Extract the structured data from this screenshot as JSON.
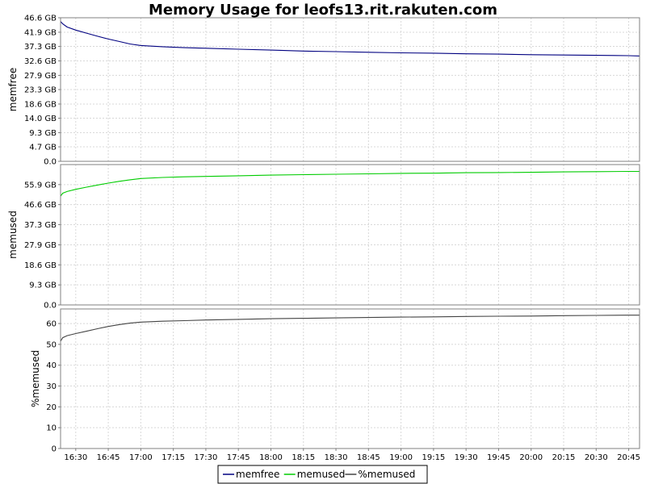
{
  "chart_data": {
    "type": "line",
    "title": "Memory Usage for leofs13.rit.rakuten.com",
    "x_ticks": [
      "16:30",
      "16:45",
      "17:00",
      "17:15",
      "17:30",
      "17:45",
      "18:00",
      "18:15",
      "18:30",
      "18:45",
      "19:00",
      "19:15",
      "19:30",
      "19:45",
      "20:00",
      "20:15",
      "20:30",
      "20:45"
    ],
    "x_range": [
      "16:23",
      "20:50"
    ],
    "grid": true,
    "legend_position": "bottom-center",
    "legend": [
      "memfree",
      "memused",
      "%memused"
    ],
    "panels": [
      {
        "ylabel": "memfree",
        "unit": "GB",
        "ylim": [
          0,
          46.6
        ],
        "y_ticks": [
          0,
          4.7,
          9.3,
          14.0,
          18.6,
          23.3,
          27.9,
          32.6,
          37.3,
          41.9,
          46.6
        ],
        "y_tick_labels": [
          "0.0",
          "4.7 GB",
          "9.3 GB",
          "14.0 GB",
          "18.6 GB",
          "23.3 GB",
          "27.9 GB",
          "32.6 GB",
          "37.3 GB",
          "41.9 GB",
          "46.6 GB"
        ],
        "series": [
          {
            "name": "memfree",
            "color": "#000080",
            "x": [
              "16:23",
              "16:24",
              "16:26",
              "16:30",
              "16:35",
              "16:40",
              "16:45",
              "16:50",
              "16:55",
              "17:00",
              "17:10",
              "17:20",
              "17:30",
              "17:45",
              "18:00",
              "18:15",
              "18:30",
              "18:45",
              "19:00",
              "19:15",
              "19:30",
              "19:45",
              "20:00",
              "20:15",
              "20:30",
              "20:45",
              "20:50"
            ],
            "values": [
              45.4,
              44.6,
              43.6,
              42.6,
              41.6,
              40.6,
              39.7,
              38.9,
              38.1,
              37.6,
              37.2,
              36.9,
              36.7,
              36.4,
              36.1,
              35.8,
              35.6,
              35.4,
              35.2,
              35.1,
              34.9,
              34.8,
              34.6,
              34.5,
              34.4,
              34.3,
              34.2
            ]
          }
        ]
      },
      {
        "ylabel": "memused",
        "unit": "GB",
        "ylim": [
          0,
          65.2
        ],
        "y_ticks": [
          0,
          9.3,
          18.6,
          27.9,
          37.3,
          46.6,
          55.9
        ],
        "y_tick_labels": [
          "0.0",
          "9.3 GB",
          "18.6 GB",
          "27.9 GB",
          "37.3 GB",
          "46.6 GB",
          "55.9 GB"
        ],
        "series": [
          {
            "name": "memused",
            "color": "#00cc00",
            "x": [
              "16:23",
              "16:24",
              "16:26",
              "16:30",
              "16:35",
              "16:40",
              "16:45",
              "16:50",
              "16:55",
              "17:00",
              "17:10",
              "17:20",
              "17:30",
              "17:45",
              "18:00",
              "18:15",
              "18:30",
              "18:45",
              "19:00",
              "19:15",
              "19:30",
              "19:45",
              "20:00",
              "20:15",
              "20:30",
              "20:45",
              "20:50"
            ],
            "values": [
              50.5,
              51.9,
              52.7,
              53.7,
              54.7,
              55.7,
              56.6,
              57.4,
              58.1,
              58.7,
              59.2,
              59.5,
              59.7,
              60.0,
              60.3,
              60.5,
              60.7,
              60.9,
              61.1,
              61.2,
              61.4,
              61.5,
              61.6,
              61.8,
              61.9,
              62.0,
              62.0
            ]
          }
        ]
      },
      {
        "ylabel": "%memused",
        "unit": "",
        "ylim": [
          0,
          67
        ],
        "y_ticks": [
          0,
          10,
          20,
          30,
          40,
          50,
          60
        ],
        "y_tick_labels": [
          "0",
          "10",
          "20",
          "30",
          "40",
          "50",
          "60"
        ],
        "series": [
          {
            "name": "%memused",
            "color": "#444444",
            "x": [
              "16:23",
              "16:24",
              "16:26",
              "16:30",
              "16:35",
              "16:40",
              "16:45",
              "16:50",
              "16:55",
              "17:00",
              "17:10",
              "17:20",
              "17:30",
              "17:45",
              "18:00",
              "18:15",
              "18:30",
              "18:45",
              "19:00",
              "19:15",
              "19:30",
              "19:45",
              "20:00",
              "20:15",
              "20:30",
              "20:45",
              "20:50"
            ],
            "values": [
              51.5,
              53.2,
              54.2,
              55.2,
              56.3,
              57.5,
              58.6,
              59.5,
              60.2,
              60.7,
              61.1,
              61.4,
              61.7,
              62.0,
              62.3,
              62.5,
              62.7,
              62.9,
              63.1,
              63.2,
              63.4,
              63.5,
              63.6,
              63.8,
              63.9,
              64.0,
              64.0
            ]
          }
        ]
      }
    ]
  }
}
